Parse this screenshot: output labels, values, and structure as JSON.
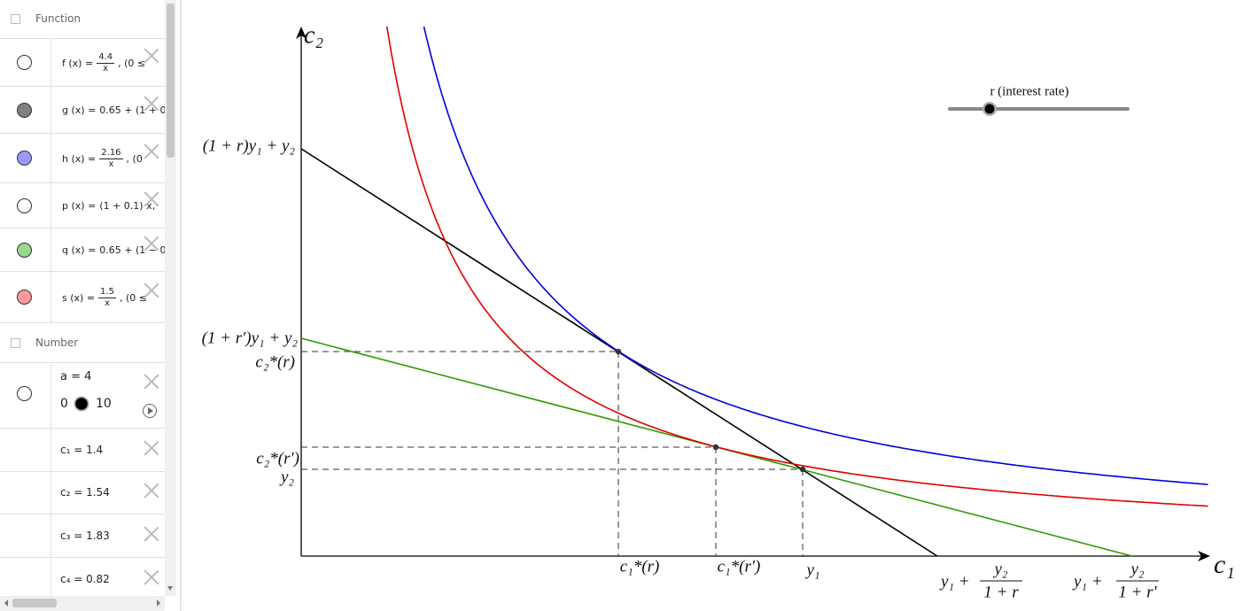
{
  "algebra": {
    "function_header": "Function",
    "functions": [
      {
        "lhs": "f (x) =",
        "numerator": "4.4",
        "denominator": "x",
        "tail": ",   (0 ≤",
        "color": "#ffffff"
      },
      {
        "lhs": "g (x) =",
        "expr": "0.65 + (1 + 0",
        "color": "#808080"
      },
      {
        "lhs": "h (x) =",
        "numerator": "2.16",
        "denominator": "x",
        "tail": ",   (0",
        "color": "#9999ff"
      },
      {
        "lhs": "p (x) =",
        "expr": "(1 + 0.1) x,",
        "color": "#ffffff"
      },
      {
        "lhs": "q (x) =",
        "expr": "0.65 + (1 − 0",
        "color": "#99d98c"
      },
      {
        "lhs": "s (x) =",
        "numerator": "1.5",
        "denominator": "x",
        "tail": ",   (0 ≤",
        "color": "#ff9999"
      }
    ],
    "number_header": "Number",
    "slider": {
      "label": "a = 4",
      "min": "0",
      "max": "10"
    },
    "numbers": [
      "c₁ = 1.4",
      "c₂ = 1.54",
      "c₃ = 1.83",
      "c₄ = 0.82"
    ]
  },
  "graphics": {
    "y_axis": "c₂",
    "x_axis": "c₁",
    "slider_label": "r (interest rate)",
    "labels": {
      "intercept_r": "(1 + r)y₁ + y₂",
      "intercept_r_prime": "(1 + r′)y₁ + y₂",
      "c2_r": "c₂*(r)",
      "c2_r_prime": "c₂*(r′)",
      "y2": "y₂",
      "c1_r": "c₁*(r)",
      "c1_r_prime": "c₁*(r′)",
      "y1": "y₁"
    },
    "fractions": [
      {
        "whole": "y₁ +",
        "numerator": "y₂",
        "denominator": "1 + r"
      },
      {
        "whole": "y₁ +",
        "numerator": "y₂",
        "denominator": "1 + r′"
      }
    ]
  }
}
